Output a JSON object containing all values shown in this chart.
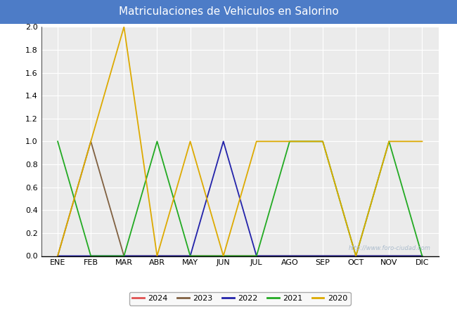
{
  "title": "Matriculaciones de Vehiculos en Salorino",
  "months": [
    "ENE",
    "FEB",
    "MAR",
    "ABR",
    "MAY",
    "JUN",
    "JUL",
    "AGO",
    "SEP",
    "OCT",
    "NOV",
    "DIC"
  ],
  "series": {
    "2024": [
      0,
      0,
      0,
      0,
      0,
      0,
      0,
      0,
      0,
      0,
      0,
      0
    ],
    "2023": [
      0,
      1,
      0,
      0,
      0,
      0,
      0,
      0,
      0,
      0,
      0,
      0
    ],
    "2022": [
      0,
      0,
      0,
      0,
      0,
      1,
      0,
      0,
      0,
      0,
      0,
      0
    ],
    "2021": [
      1,
      0,
      0,
      1,
      0,
      0,
      0,
      1,
      1,
      0,
      1,
      0
    ],
    "2020": [
      0,
      1,
      2,
      0,
      1,
      0,
      1,
      1,
      1,
      0,
      1,
      1
    ]
  },
  "colors": {
    "2024": "#e05050",
    "2023": "#806040",
    "2022": "#2222aa",
    "2021": "#22aa22",
    "2020": "#ddaa00"
  },
  "ylim": [
    0,
    2.0
  ],
  "yticks": [
    0.0,
    0.2,
    0.4,
    0.6,
    0.8,
    1.0,
    1.2,
    1.4,
    1.6,
    1.8,
    2.0
  ],
  "title_bg_color": "#4d7cc7",
  "title_text_color": "#ffffff",
  "plot_bg_color": "#ebebeb",
  "fig_bg_color": "#ffffff",
  "watermark_text": "http://www.foro-ciudad.com",
  "watermark_color": "#aabbcc",
  "legend_years": [
    "2024",
    "2023",
    "2022",
    "2021",
    "2020"
  ],
  "linewidth": 1.3
}
